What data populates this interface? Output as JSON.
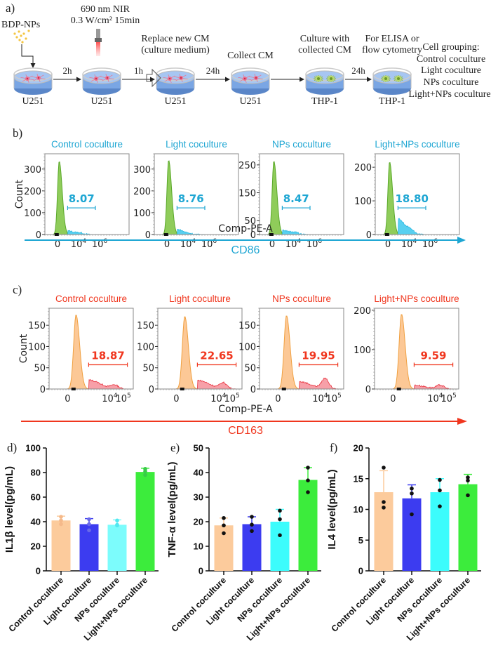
{
  "panel_a": {
    "label": "a)",
    "reagent": "BDP-NPs",
    "laser_line1": "690 nm NIR",
    "laser_line2": "0.3 W/cm² 15min",
    "steps": [
      {
        "title": "",
        "cell": "U251",
        "cells": "u251"
      },
      {
        "title": "",
        "cell": "U251",
        "cells": "u251"
      },
      {
        "title": "Replace new CM\n(culture medium)",
        "cell": "U251",
        "cells": "u251"
      },
      {
        "title": "Collect CM",
        "cell": "U251",
        "cells": "u251"
      },
      {
        "title": "Culture with\ncollected CM",
        "cell": "THP-1",
        "cells": "thp1"
      },
      {
        "title": "For ELISA or\nflow cytometry",
        "cell": "THP-1",
        "cells": "thp1"
      }
    ],
    "arrows": [
      "2h",
      "1h",
      "24h",
      "",
      "24h"
    ],
    "grouping_title": "Cell grouping:",
    "grouping": [
      "Control coculture",
      "Light coculture",
      "NPs coculture",
      "Light+NPs coculture"
    ]
  },
  "panel_b": {
    "label": "b)",
    "color": "#1ea6d3",
    "x_label": "Comp-PE-A",
    "marker_label": "CD86",
    "y_label": "Count"
  },
  "panel_c": {
    "label": "c)",
    "color": "#f0361e",
    "x_label": "Comp-PE-A",
    "marker_label": "CD163",
    "y_label": "Count"
  },
  "panel_d_label": "d)",
  "panel_e_label": "e)",
  "panel_f_label": "f)",
  "chart_data": [
    {
      "id": "b1",
      "type": "area",
      "panel": "b",
      "title": "Control coculture",
      "gate_value": "8.07",
      "y_ticks": [
        0,
        100,
        200,
        300
      ],
      "ylim": [
        0,
        370
      ],
      "x_ticks": [
        "0",
        "10^4",
        "10^6"
      ],
      "xlabel": "Comp-PE-A",
      "ylabel": "Count",
      "peak": 350,
      "tail_level": 0.05,
      "tail_bump": 0.02,
      "fill_main": "#8fcc5a",
      "fill_tail": "#58d0f0",
      "line_main": "#5aa82a",
      "line_tail": "#2cb8e0"
    },
    {
      "id": "b2",
      "type": "area",
      "panel": "b",
      "title": "Light coculture",
      "gate_value": "8.76",
      "y_ticks": [
        0,
        100,
        200,
        300
      ],
      "ylim": [
        0,
        370
      ],
      "x_ticks": [
        "0",
        "10^4",
        "10^6"
      ],
      "xlabel": "Comp-PE-A",
      "ylabel": "Count",
      "peak": 355,
      "tail_level": 0.07,
      "tail_bump": 0.01,
      "fill_main": "#8fcc5a",
      "fill_tail": "#58d0f0",
      "line_main": "#5aa82a",
      "line_tail": "#2cb8e0"
    },
    {
      "id": "b3",
      "type": "area",
      "panel": "b",
      "title": "NPs coculture",
      "gate_value": "8.47",
      "y_ticks": [
        0,
        50,
        150,
        250
      ],
      "ylim": [
        0,
        290
      ],
      "x_ticks": [
        "0",
        "10^4",
        "10^6"
      ],
      "xlabel": "Comp-PE-A",
      "ylabel": "Count",
      "peak": 275,
      "tail_level": 0.06,
      "tail_bump": 0.03,
      "fill_main": "#8fcc5a",
      "fill_tail": "#58d0f0",
      "line_main": "#5aa82a",
      "line_tail": "#2cb8e0"
    },
    {
      "id": "b4",
      "type": "area",
      "panel": "b",
      "title": "Light+NPs coculture",
      "gate_value": "18.80",
      "y_ticks": [
        0,
        100,
        200
      ],
      "ylim": [
        0,
        240
      ],
      "x_ticks": [
        "0",
        "10^4",
        "10^6"
      ],
      "xlabel": "Comp-PE-A",
      "ylabel": "Count",
      "peak": 225,
      "tail_level": 0.22,
      "tail_bump": 0.06,
      "fill_main": "#8fcc5a",
      "fill_tail": "#58d0f0",
      "line_main": "#5aa82a",
      "line_tail": "#2cb8e0"
    },
    {
      "id": "c1",
      "type": "area",
      "panel": "c",
      "title": "Control coculture",
      "gate_value": "18.87",
      "y_ticks": [
        0,
        50,
        100,
        150
      ],
      "ylim": [
        0,
        190
      ],
      "x_ticks": [
        "0",
        "10^4",
        "10^5"
      ],
      "xlabel": "Comp-PE-A",
      "ylabel": "Count",
      "peak": 182,
      "tail_level": 0.12,
      "tail_bump": 0.05,
      "fill_main": "#fcc896",
      "fill_tail": "#f7a0a8",
      "line_main": "#f0a040",
      "line_tail": "#e8303c"
    },
    {
      "id": "c2",
      "type": "area",
      "panel": "c",
      "title": "Light coculture",
      "gate_value": "22.65",
      "y_ticks": [
        0,
        50,
        100,
        150
      ],
      "ylim": [
        0,
        190
      ],
      "x_ticks": [
        "0",
        "10^4",
        "10^5"
      ],
      "xlabel": "Comp-PE-A",
      "ylabel": "Count",
      "peak": 178,
      "tail_level": 0.12,
      "tail_bump": 0.08,
      "fill_main": "#fcc896",
      "fill_tail": "#f7a0a8",
      "line_main": "#f0a040",
      "line_tail": "#e8303c"
    },
    {
      "id": "c3",
      "type": "area",
      "panel": "c",
      "title": "NPs coculture",
      "gate_value": "19.95",
      "y_ticks": [
        0,
        50,
        100,
        150
      ],
      "ylim": [
        0,
        190
      ],
      "x_ticks": [
        "0",
        "10^4",
        "10^5"
      ],
      "xlabel": "Comp-PE-A",
      "ylabel": "Count",
      "peak": 180,
      "tail_level": 0.1,
      "tail_bump": 0.14,
      "fill_main": "#fcc896",
      "fill_tail": "#f7a0a8",
      "line_main": "#f0a040",
      "line_tail": "#e8303c"
    },
    {
      "id": "c4",
      "type": "area",
      "panel": "c",
      "title": "Light+NPs coculture",
      "gate_value": "9.59",
      "y_ticks": [
        0,
        100,
        200
      ],
      "ylim": [
        0,
        205
      ],
      "x_ticks": [
        "0",
        "10^4",
        "10^5"
      ],
      "xlabel": "Comp-PE-A",
      "ylabel": "Count",
      "peak": 198,
      "tail_level": 0.05,
      "tail_bump": 0.05,
      "fill_main": "#fcc896",
      "fill_tail": "#f7a0a8",
      "line_main": "#f0a040",
      "line_tail": "#e8303c"
    },
    {
      "id": "d",
      "type": "bar",
      "panel": "d",
      "title": "",
      "ylabel": "IL1β level(pg/mL)",
      "ylim": [
        0,
        100
      ],
      "y_ticks": [
        0,
        20,
        40,
        60,
        80,
        100
      ],
      "categories": [
        "Control coculture",
        "Light coculture",
        "NPs coculture",
        "Light+NPs coculture"
      ],
      "values": [
        41,
        38,
        37.5,
        80.5
      ],
      "errors": [
        3.5,
        4.5,
        4,
        3
      ],
      "points": [
        [
          44,
          38,
          41
        ],
        [
          42,
          33,
          38
        ],
        [
          41,
          37,
          37.5
        ],
        [
          83,
          78,
          81
        ]
      ],
      "colors": [
        "#fccb9c",
        "#3c3cf0",
        "#7cfcfc",
        "#3cec3c"
      ],
      "point_colors": [
        "#f5b98a",
        "#6a6ae8",
        "#52e8f0",
        "#38cc48"
      ]
    },
    {
      "id": "e",
      "type": "bar",
      "panel": "e",
      "title": "",
      "ylabel": "TNF-α level(pg/mL)",
      "ylim": [
        0,
        50
      ],
      "y_ticks": [
        0,
        10,
        20,
        30,
        40,
        50
      ],
      "categories": [
        "Control coculture",
        "Light coculture",
        "NPs coculture",
        "Light+NPs coculture"
      ],
      "values": [
        18.5,
        19,
        20,
        37
      ],
      "errors": [
        3,
        3,
        5,
        5
      ],
      "points": [
        [
          21.5,
          18.5,
          15.3
        ],
        [
          22,
          18.8,
          16.2
        ],
        [
          24.5,
          21,
          14.5
        ],
        [
          42,
          36.8,
          32
        ]
      ],
      "colors": [
        "#fccb9c",
        "#3c3cf0",
        "#3cfcfc",
        "#3cec3c"
      ],
      "point_colors": [
        "#111111",
        "#111111",
        "#111111",
        "#111111"
      ]
    },
    {
      "id": "f",
      "type": "bar",
      "panel": "f",
      "title": "",
      "ylabel": "IL4 level(pg/mL)",
      "ylim": [
        0,
        20
      ],
      "y_ticks": [
        0,
        5,
        10,
        15,
        20
      ],
      "categories": [
        "Control coculture",
        "Light coculture",
        "NPs coculture",
        "Light+NPs coculture"
      ],
      "values": [
        12.8,
        11.8,
        12.8,
        14.1
      ],
      "errors": [
        3.5,
        2.2,
        2.2,
        1.6
      ],
      "points": [
        [
          16.8,
          11.2,
          10.3
        ],
        [
          13.4,
          12.6,
          9.2
        ],
        [
          14.8,
          13.1,
          10.5
        ],
        [
          15.2,
          14.7,
          12.3
        ]
      ],
      "colors": [
        "#fccb9c",
        "#3c3cf0",
        "#3cfcfc",
        "#3cec3c"
      ],
      "point_colors": [
        "#111111",
        "#111111",
        "#111111",
        "#111111"
      ]
    }
  ]
}
